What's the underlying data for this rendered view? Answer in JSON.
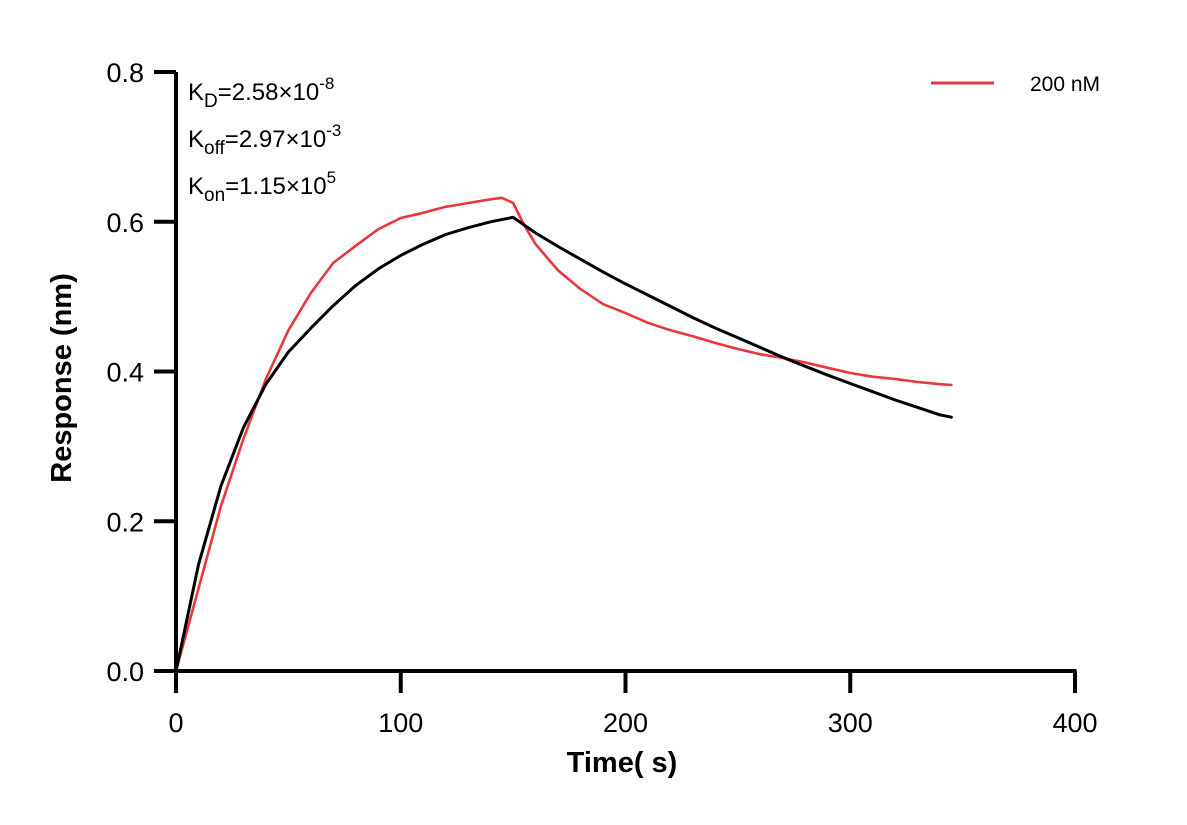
{
  "chart_data": {
    "type": "line",
    "title": "",
    "xlabel": "Time( s)",
    "ylabel": "Response (nm)",
    "xlim": [
      0,
      400
    ],
    "ylim": [
      0,
      0.8
    ],
    "x_ticks": [
      0,
      100,
      200,
      300,
      400
    ],
    "x_tick_labels": [
      "0",
      "100",
      "200",
      "300",
      "400"
    ],
    "y_ticks": [
      0,
      0.2,
      0.4,
      0.6,
      0.8
    ],
    "y_tick_labels": [
      "0.0",
      "0.2",
      "0.4",
      "0.6",
      "0.8"
    ],
    "grid": false,
    "legend_position": "top-right",
    "annotations": [
      {
        "base": "K",
        "sub": "D",
        "value": "=2.58×10",
        "exp": "-8"
      },
      {
        "base": "K",
        "sub": "off",
        "value": "=2.97×10",
        "exp": "-3"
      },
      {
        "base": "K",
        "sub": "on",
        "value": "=1.15×10",
        "exp": "5"
      }
    ],
    "series": [
      {
        "name": "200 nM",
        "color": "#e8383d",
        "x": [
          0,
          10,
          20,
          30,
          40,
          50,
          60,
          70,
          80,
          90,
          100,
          110,
          120,
          130,
          140,
          145,
          150,
          155,
          160,
          170,
          180,
          190,
          200,
          210,
          220,
          230,
          240,
          250,
          260,
          270,
          280,
          290,
          300,
          310,
          320,
          330,
          340,
          345
        ],
        "y": [
          0.0,
          0.11,
          0.22,
          0.31,
          0.39,
          0.455,
          0.505,
          0.545,
          0.568,
          0.59,
          0.605,
          0.612,
          0.62,
          0.625,
          0.63,
          0.632,
          0.625,
          0.595,
          0.57,
          0.535,
          0.51,
          0.49,
          0.478,
          0.465,
          0.455,
          0.447,
          0.438,
          0.43,
          0.423,
          0.418,
          0.412,
          0.405,
          0.398,
          0.393,
          0.39,
          0.386,
          0.383,
          0.382
        ]
      },
      {
        "name": "",
        "color": "#000000",
        "x": [
          0,
          10,
          20,
          30,
          40,
          50,
          60,
          70,
          80,
          90,
          100,
          110,
          120,
          130,
          140,
          150,
          160,
          170,
          180,
          190,
          200,
          210,
          220,
          230,
          240,
          250,
          260,
          270,
          280,
          290,
          300,
          310,
          320,
          330,
          340,
          345
        ],
        "y": [
          0.0,
          0.142,
          0.247,
          0.325,
          0.383,
          0.426,
          0.458,
          0.488,
          0.515,
          0.537,
          0.555,
          0.57,
          0.583,
          0.592,
          0.6,
          0.606,
          0.585,
          0.567,
          0.55,
          0.533,
          0.517,
          0.502,
          0.487,
          0.472,
          0.458,
          0.445,
          0.432,
          0.419,
          0.407,
          0.395,
          0.384,
          0.373,
          0.362,
          0.352,
          0.342,
          0.339
        ]
      }
    ]
  }
}
